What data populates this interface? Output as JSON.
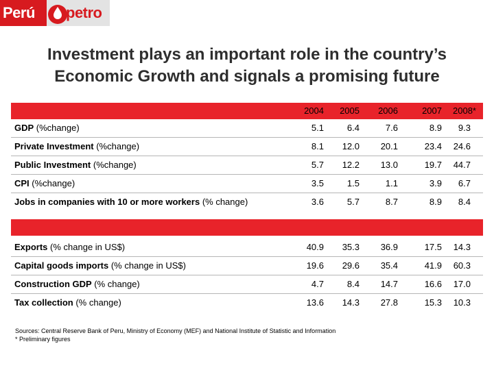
{
  "logo": {
    "part1": "Perú",
    "part2": "petro"
  },
  "title": {
    "line1": "Investment plays an important role in the country’s",
    "line2": "Economic Growth and signals a promising future"
  },
  "columns": [
    "2004",
    "2005",
    "2006",
    "2007",
    "2008*"
  ],
  "colors": {
    "accent": "#e8232a",
    "brand": "#d71a1f",
    "divider": "#b5b5b5"
  },
  "section1": [
    {
      "label": "GDP",
      "suffix": " (%change)",
      "values": [
        "5.1",
        "6.4",
        "7.6",
        "8.9",
        "9.3"
      ]
    },
    {
      "label": "Private Investment",
      "suffix": " (%change)",
      "values": [
        "8.1",
        "12.0",
        "20.1",
        "23.4",
        "24.6"
      ]
    },
    {
      "label": "Public Investment",
      "suffix": " (%change)",
      "values": [
        "5.7",
        "12.2",
        "13.0",
        "19.7",
        "44.7"
      ]
    },
    {
      "label": "CPI",
      "suffix": " (%change)",
      "values": [
        "3.5",
        "1.5",
        "1.1",
        "3.9",
        "6.7"
      ]
    },
    {
      "label": "Jobs in companies with 10 or more workers",
      "suffix": " (% change)",
      "values": [
        "3.6",
        "5.7",
        "8.7",
        "8.9",
        "8.4"
      ]
    }
  ],
  "section2": [
    {
      "label": "Exports",
      "suffix": " (% change in US$)",
      "values": [
        "40.9",
        "35.3",
        "36.9",
        "17.5",
        "14.3"
      ]
    },
    {
      "label": "Capital goods imports",
      "suffix": " (% change in US$)",
      "values": [
        "19.6",
        "29.6",
        "35.4",
        "41.9",
        "60.3"
      ]
    },
    {
      "label": "Construction GDP",
      "suffix": " (% change)",
      "values": [
        "4.7",
        "8.4",
        "14.7",
        "16.6",
        "17.0"
      ]
    },
    {
      "label": "Tax collection",
      "suffix": " (% change)",
      "values": [
        "13.6",
        "14.3",
        "27.8",
        "15.3",
        "10.3"
      ]
    }
  ],
  "sources": {
    "line1": "Sources: Central Reserve Bank of Peru, Ministry of Economy (MEF) and National Institute of Statistic and Information",
    "line2": "* Preliminary figures"
  }
}
